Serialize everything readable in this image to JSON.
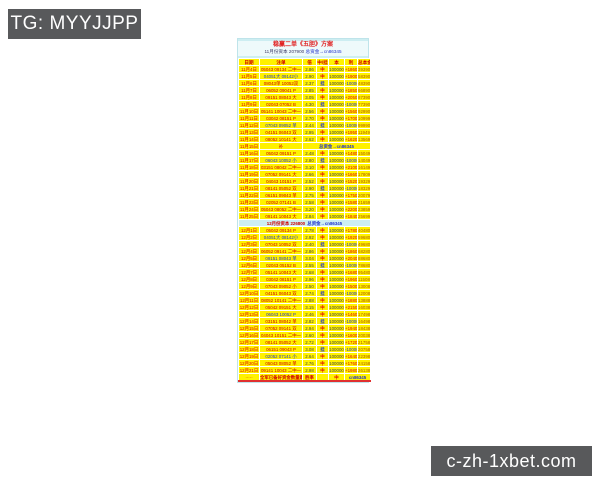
{
  "badges": {
    "telegram": "TG: MYYJJPP",
    "website": "c-zh-1xbet.com"
  },
  "colors": {
    "badge_bg": "#58595b",
    "row_yellow": "#fff100",
    "divider_cyan": "#cdeef2",
    "text_red": "#e00000",
    "text_blue": "#2233cc",
    "total_brown": "#b05a00"
  },
  "table": {
    "title": "稳赢二单《五胆》方案",
    "subtitle_left": "11月份资本 207900",
    "subtitle_right": "总资金→cn86345",
    "headers": [
      "日期",
      "注单",
      "倍",
      "中/挂",
      "本",
      "利",
      "总本金利"
    ],
    "rows": [
      {
        "t": "d",
        "c": [
          "11月4日",
          "05043 09134 二中一",
          "2.86",
          "中",
          "100000",
          "+186000",
          "393900"
        ]
      },
      {
        "t": "d",
        "b": "blue",
        "c": [
          "11月5日",
          "04051大 09142小",
          "2.90",
          "中",
          "100000",
          "+190000",
          "583900"
        ]
      },
      {
        "t": "d",
        "c": [
          "11月6日",
          "08043单 10052双",
          "2.37",
          "挂",
          "100000",
          "-100000",
          "483900"
        ]
      },
      {
        "t": "d",
        "c": [
          "11月7日",
          "06052 09041 P",
          "2.85",
          "中",
          "100000",
          "+185000",
          "668900"
        ]
      },
      {
        "t": "d",
        "c": [
          "11月8日",
          "09151 08043 大",
          "3.05",
          "中",
          "100000",
          "+205000",
          "873900"
        ]
      },
      {
        "t": "d",
        "c": [
          "11月9日",
          "02043 07052 B",
          "4.30",
          "挂",
          "100000",
          "-100000",
          "773900"
        ]
      },
      {
        "t": "d",
        "c": [
          "11月10日",
          "05141 10043 二中一",
          "2.56",
          "中",
          "100000",
          "+156000",
          "929900"
        ]
      },
      {
        "t": "d",
        "c": [
          "11月11日",
          "03042 08151 P",
          "2.70",
          "中",
          "100000",
          "+170000",
          "1099900"
        ]
      },
      {
        "t": "d",
        "b": "blue",
        "c": [
          "11月12日",
          "07043 09052 单",
          "2.44",
          "挂",
          "100000",
          "-100000",
          "999900"
        ]
      },
      {
        "t": "d",
        "c": [
          "11月13日",
          "04151 06043 双",
          "2.95",
          "中",
          "100000",
          "+195000",
          "1194900"
        ]
      },
      {
        "t": "d",
        "c": [
          "11月14日",
          "08052 10141 大",
          "2.62",
          "中",
          "100000",
          "+162000",
          "1356900"
        ]
      },
      {
        "t": "m",
        "c": [
          "11月15日",
          "补",
          "总资金→cn86345"
        ]
      },
      {
        "t": "d",
        "c": [
          "11月16日",
          "05042 09151 P",
          "2.48",
          "中",
          "100000",
          "+148000",
          "1504900"
        ]
      },
      {
        "t": "d",
        "b": "blue",
        "c": [
          "11月17日",
          "06043 10052 小",
          "2.80",
          "挂",
          "100000",
          "-100000",
          "1404900"
        ]
      },
      {
        "t": "d",
        "c": [
          "11月18日",
          "03151 08042 二中一",
          "3.10",
          "中",
          "100000",
          "+210000",
          "1614900"
        ]
      },
      {
        "t": "d",
        "c": [
          "11月19日",
          "07052 09141 大",
          "2.66",
          "中",
          "100000",
          "+166000",
          "1780900"
        ]
      },
      {
        "t": "d",
        "c": [
          "11月20日",
          "04043 10151 P",
          "2.52",
          "中",
          "100000",
          "+152000",
          "1932900"
        ]
      },
      {
        "t": "d",
        "c": [
          "11月21日",
          "08141 05052 双",
          "2.90",
          "挂",
          "100000",
          "-100000",
          "1832900"
        ]
      },
      {
        "t": "d",
        "c": [
          "11月22日",
          "06151 09043 单",
          "2.75",
          "中",
          "100000",
          "+175000",
          "2007900"
        ]
      },
      {
        "t": "d",
        "c": [
          "11月23日",
          "02052 07141 B",
          "2.58",
          "中",
          "100000",
          "+158000",
          "2165900"
        ]
      },
      {
        "t": "d",
        "c": [
          "11月24日",
          "05043 08052 二中一",
          "3.20",
          "中",
          "100000",
          "+220000",
          "2385900"
        ]
      },
      {
        "t": "d",
        "c": [
          "11月25日",
          "09141 10043 大",
          "2.84",
          "中",
          "100000",
          "+184000",
          "2569900"
        ]
      },
      {
        "t": "s",
        "l": "12月份资本 226800",
        "r": "总资金→cn86345"
      },
      {
        "t": "d",
        "c": [
          "12月1日",
          "05042 09134 P",
          "2.78",
          "中",
          "100000",
          "+178000",
          "404800"
        ]
      },
      {
        "t": "d",
        "b": "blue",
        "c": [
          "12月2日",
          "04051大 08142小",
          "2.92",
          "中",
          "100000",
          "+192000",
          "596800"
        ]
      },
      {
        "t": "d",
        "c": [
          "12月3日",
          "07043 10052 双",
          "2.40",
          "挂",
          "100000",
          "-100000",
          "496800"
        ]
      },
      {
        "t": "d",
        "c": [
          "12月4日",
          "06052 09141 二中一",
          "2.86",
          "中",
          "100000",
          "+186000",
          "682800"
        ]
      },
      {
        "t": "d",
        "b": "blue",
        "c": [
          "12月5日",
          "09151 08043 单",
          "3.04",
          "中",
          "100000",
          "+204000",
          "886800"
        ]
      },
      {
        "t": "d",
        "c": [
          "12月6日",
          "02043 05152 B",
          "2.55",
          "挂",
          "100000",
          "-100000",
          "786800"
        ]
      },
      {
        "t": "d",
        "c": [
          "12月7日",
          "05141 10043 大",
          "2.68",
          "中",
          "100000",
          "+168000",
          "954800"
        ]
      },
      {
        "t": "d",
        "c": [
          "12月8日",
          "03042 08151 P",
          "2.96",
          "中",
          "100000",
          "+196000",
          "1150800"
        ]
      },
      {
        "t": "d",
        "c": [
          "12月9日",
          "07043 09052 小",
          "2.50",
          "中",
          "100000",
          "+150000",
          "1300800"
        ]
      },
      {
        "t": "d",
        "c": [
          "12月10日",
          "04151 06043 双",
          "2.74",
          "挂",
          "100000",
          "-100000",
          "1200800"
        ]
      },
      {
        "t": "d",
        "c": [
          "12月11日",
          "08052 10141 二中一",
          "2.88",
          "中",
          "100000",
          "+188000",
          "1388800"
        ]
      },
      {
        "t": "d",
        "c": [
          "12月12日",
          "05042 09151 大",
          "3.15",
          "中",
          "100000",
          "+215000",
          "1603800"
        ]
      },
      {
        "t": "d",
        "b": "blue",
        "c": [
          "12月13日",
          "06043 10052 P",
          "2.46",
          "中",
          "100000",
          "+146000",
          "1749800"
        ]
      },
      {
        "t": "d",
        "c": [
          "12月14日",
          "03151 08042 单",
          "2.82",
          "挂",
          "100000",
          "-100000",
          "1649800"
        ]
      },
      {
        "t": "d",
        "c": [
          "12月15日",
          "07052 09141 双",
          "2.94",
          "中",
          "100000",
          "+194000",
          "1843800"
        ]
      },
      {
        "t": "d",
        "c": [
          "12月16日",
          "04043 10151 二中一",
          "2.60",
          "中",
          "100000",
          "+160000",
          "2003800"
        ]
      },
      {
        "t": "d",
        "c": [
          "12月17日",
          "08141 05052 大",
          "2.72",
          "中",
          "100000",
          "+172000",
          "2175800"
        ]
      },
      {
        "t": "d",
        "c": [
          "12月18日",
          "06151 09043 P",
          "3.08",
          "挂",
          "100000",
          "-100000",
          "2075800"
        ]
      },
      {
        "t": "d",
        "b": "blue",
        "c": [
          "12月19日",
          "02052 07141 小",
          "2.64",
          "中",
          "100000",
          "+164000",
          "2239800"
        ]
      },
      {
        "t": "d",
        "c": [
          "12月20日",
          "05043 08052 单",
          "2.76",
          "中",
          "100000",
          "+176000",
          "2415800"
        ]
      },
      {
        "t": "d",
        "c": [
          "12月21日",
          "09141 10043 二中一",
          "2.98",
          "中",
          "100000",
          "+198000",
          "2613800"
        ]
      },
      {
        "t": "f",
        "c": [
          "·····",
          "全军已备好资金数量跟上",
          "胜率",
          "",
          "中",
          "cn86345"
        ]
      }
    ]
  }
}
